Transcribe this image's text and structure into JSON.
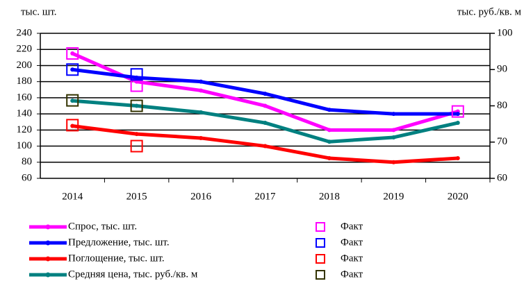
{
  "chart_data": {
    "type": "line",
    "y_label": "тыс. шт.",
    "y2_label": "тыс. руб./кв. м",
    "categories": [
      "2014",
      "2015",
      "2016",
      "2017",
      "2018",
      "2019",
      "2020"
    ],
    "ylim": [
      60,
      240
    ],
    "yticks": [
      60,
      80,
      100,
      120,
      140,
      160,
      180,
      200,
      220,
      240
    ],
    "y2lim": [
      60,
      100
    ],
    "y2ticks": [
      60,
      70,
      80,
      90,
      100
    ],
    "grid": true,
    "series": [
      {
        "name": "Спрос, тыс. шт.",
        "color": "#ff00ff",
        "marker": "line",
        "values": [
          215,
          180,
          169,
          150,
          120,
          120,
          143
        ]
      },
      {
        "name": "Предложение, тыс. шт.",
        "color": "#0000ff",
        "marker": "line",
        "values": [
          195,
          185,
          180,
          165,
          145,
          140,
          140
        ]
      },
      {
        "name": "Поглощение, тыс. шт.",
        "color": "#ff0000",
        "marker": "line",
        "values": [
          125,
          115,
          110,
          100,
          85,
          80,
          85
        ]
      },
      {
        "name": "Средняя цена, тыс. руб./кв. м",
        "color": "#008080",
        "marker": "line",
        "axis": "y2",
        "values": [
          81.4,
          80,
          78.2,
          75.3,
          70.1,
          71.3,
          75.3
        ]
      },
      {
        "name": "Факт",
        "color": "#ff00ff",
        "marker": "square",
        "values": [
          215,
          175,
          null,
          null,
          null,
          null,
          143
        ]
      },
      {
        "name": "Факт",
        "color": "#0000ff",
        "marker": "square",
        "values": [
          195,
          189,
          null,
          null,
          null,
          null,
          null
        ]
      },
      {
        "name": "Факт",
        "color": "#ff0000",
        "marker": "square",
        "values": [
          126,
          100,
          null,
          null,
          null,
          null,
          null
        ]
      },
      {
        "name": "Факт",
        "color": "#333300",
        "marker": "square",
        "axis": "y2",
        "values": [
          81.5,
          80,
          null,
          null,
          null,
          null,
          null
        ]
      }
    ]
  }
}
